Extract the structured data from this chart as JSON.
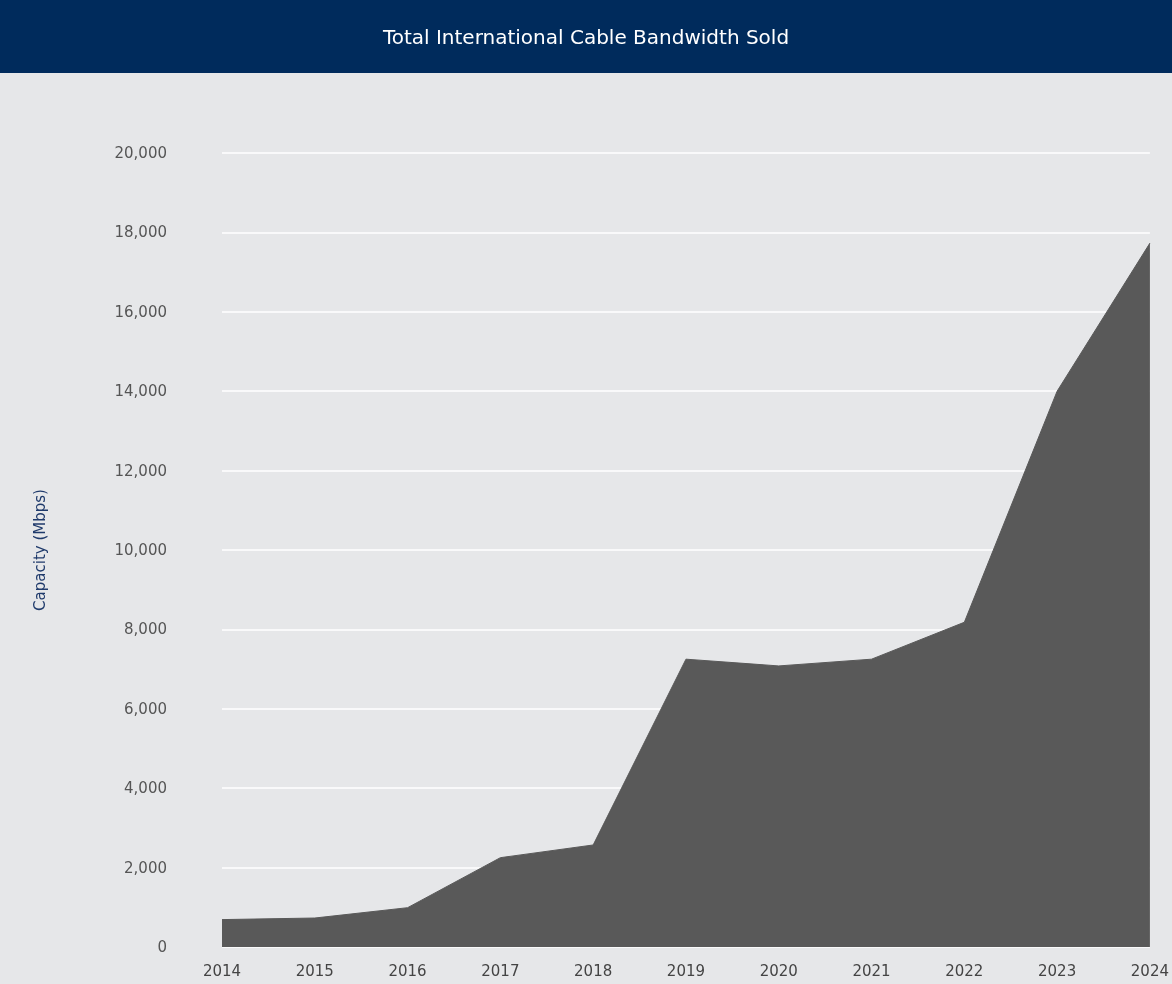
{
  "chart_data": {
    "type": "area",
    "title": "Total International Cable Bandwidth Sold",
    "ylabel": "Capacity (Mbps)",
    "categories": [
      "2014",
      "2015",
      "2016",
      "2017",
      "2018",
      "2019",
      "2020",
      "2021",
      "2022",
      "2023",
      "2024"
    ],
    "series": [
      {
        "color": "#595959",
        "values": [
          690,
          730,
          990,
          2250,
          2570,
          7250,
          7080,
          7250,
          8180,
          14000,
          17730
        ]
      }
    ],
    "ylim": [
      0,
      20000
    ],
    "yticks": [
      {
        "value": 0,
        "label": "0"
      },
      {
        "value": 2000,
        "label": "2,000"
      },
      {
        "value": 4000,
        "label": "4,000"
      },
      {
        "value": 6000,
        "label": "6,000"
      },
      {
        "value": 8000,
        "label": "8,000"
      },
      {
        "value": 10000,
        "label": "10,000"
      },
      {
        "value": 12000,
        "label": "12,000"
      },
      {
        "value": 14000,
        "label": "14,000"
      },
      {
        "value": 16000,
        "label": "16,000"
      },
      {
        "value": 18000,
        "label": "18,000"
      },
      {
        "value": 20000,
        "label": "20,000"
      }
    ],
    "grid": "y",
    "marker": "none"
  }
}
